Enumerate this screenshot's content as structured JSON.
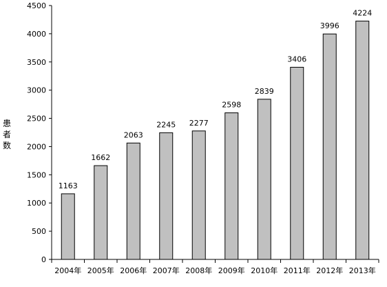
{
  "chart_data": {
    "type": "bar",
    "title": "",
    "xlabel": "",
    "ylabel": "患者数",
    "categories": [
      "2004年",
      "2005年",
      "2006年",
      "2007年",
      "2008年",
      "2009年",
      "2010年",
      "2011年",
      "2012年",
      "2013年"
    ],
    "values": [
      1163,
      1662,
      2063,
      2245,
      2277,
      2598,
      2839,
      3406,
      3996,
      4224
    ],
    "ylim": [
      0,
      4500
    ],
    "yticks": [
      0,
      500,
      1000,
      1500,
      2000,
      2500,
      3000,
      3500,
      4000,
      4500
    ],
    "grid": false,
    "legend": "none",
    "colors": {
      "bar_fill": "#c0c0c0",
      "bar_stroke": "#000000",
      "axis": "#000000"
    }
  }
}
